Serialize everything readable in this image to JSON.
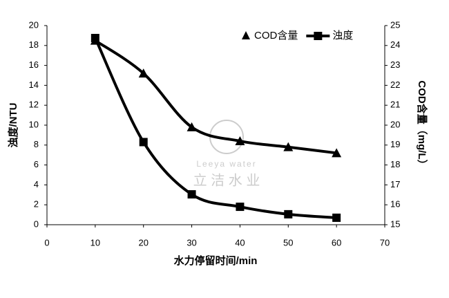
{
  "chart_data": {
    "type": "line",
    "x_label": "水力停留时间/min",
    "y_label": "浊度/NTU",
    "y2_label": "COD含量（mg/L）",
    "watermark": [
      "Leeya water",
      "立 洁 水 业"
    ],
    "x": [
      10,
      20,
      30,
      40,
      50,
      60
    ],
    "series": [
      {
        "name": "COD含量",
        "color": "#000000",
        "marker": "triangle",
        "axis": "y2",
        "values": [
          24.25,
          22.6,
          19.9,
          19.2,
          18.9,
          18.6
        ]
      },
      {
        "name": "浊度",
        "color": "#000000",
        "marker": "square",
        "values": [
          18.75,
          8.3,
          3.05,
          1.8,
          1.05,
          0.7
        ]
      }
    ],
    "xlim": [
      0,
      70
    ],
    "xticks": [
      0,
      10,
      20,
      30,
      40,
      50,
      60,
      70
    ],
    "ylim": [
      0,
      20
    ],
    "yticks": [
      0,
      2,
      4,
      6,
      8,
      10,
      12,
      14,
      16,
      18,
      20
    ],
    "y2lim": [
      15,
      25
    ],
    "y2ticks": [
      15,
      16,
      17,
      18,
      19,
      20,
      21,
      22,
      23,
      24,
      25
    ],
    "smooth": true,
    "legend": "top-right"
  }
}
